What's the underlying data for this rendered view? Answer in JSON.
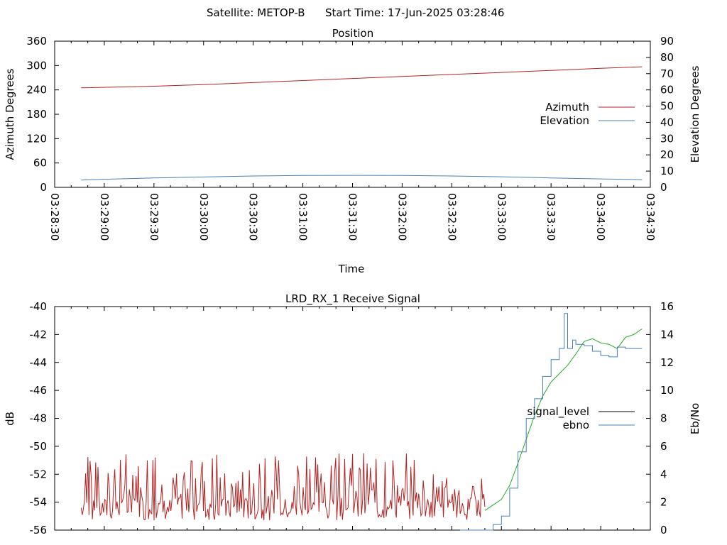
{
  "header": {
    "satellite_label": "Satellite: METOP-B",
    "start_time_label": "Start Time: 17-Jun-2025 03:28:46"
  },
  "chart_data": [
    {
      "type": "line",
      "title": "Position",
      "xlabel": "Time",
      "ylabel": "Azimuth Degrees",
      "y2label": "Elevation Degrees",
      "xlim": [
        "03:28:30",
        "03:34:30"
      ],
      "ylim": [
        0,
        360
      ],
      "y2lim": [
        0,
        90
      ],
      "x_ticks": [
        "03:28:30",
        "03:29:00",
        "03:29:30",
        "03:30:00",
        "03:30:30",
        "03:31:00",
        "03:31:30",
        "03:32:00",
        "03:32:30",
        "03:33:00",
        "03:33:30",
        "03:34:00",
        "03:34:30"
      ],
      "y_ticks": [
        "0",
        "60",
        "120",
        "180",
        "240",
        "300",
        "360"
      ],
      "y2_ticks": [
        "0",
        "10",
        "20",
        "30",
        "40",
        "50",
        "60",
        "70",
        "80",
        "90"
      ],
      "legend_position": "right",
      "series": [
        {
          "name": "Azimuth",
          "axis": "left",
          "color": "#b22222",
          "x": [
            "03:28:46",
            "03:29:30",
            "03:30:00",
            "03:30:30",
            "03:31:00",
            "03:31:30",
            "03:32:00",
            "03:32:30",
            "03:33:00",
            "03:33:30",
            "03:34:00",
            "03:34:25"
          ],
          "y": [
            245,
            249,
            253,
            258,
            263,
            268,
            273,
            278,
            283,
            288,
            293,
            297
          ]
        },
        {
          "name": "Elevation",
          "axis": "right",
          "color": "#4682b4",
          "x": [
            "03:28:46",
            "03:29:00",
            "03:29:30",
            "03:30:00",
            "03:30:30",
            "03:31:00",
            "03:31:30",
            "03:32:00",
            "03:32:30",
            "03:33:00",
            "03:33:30",
            "03:34:00",
            "03:34:25"
          ],
          "y": [
            4.5,
            5,
            5.8,
            6.4,
            7,
            7.3,
            7.4,
            7.3,
            7,
            6.5,
            5.8,
            5.2,
            4.7
          ]
        }
      ]
    },
    {
      "type": "line",
      "title": "LRD_RX_1 Receive Signal",
      "xlabel": "",
      "ylabel": "dB",
      "y2label": "Eb/No",
      "xlim": [
        "03:28:30",
        "03:34:30"
      ],
      "ylim": [
        -56,
        -40
      ],
      "y2lim": [
        0,
        16
      ],
      "y_ticks": [
        "-40",
        "-42",
        "-44",
        "-46",
        "-48",
        "-50",
        "-52",
        "-54",
        "-56"
      ],
      "y2_ticks": [
        "0",
        "2",
        "4",
        "6",
        "8",
        "10",
        "12",
        "14",
        "16"
      ],
      "legend_position": "right",
      "series": [
        {
          "name": "signal_level",
          "axis": "left",
          "color": "#000000",
          "segments": [
            {
              "color": "#b22222",
              "seed": 7,
              "x_range": [
                "03:28:46",
                "03:32:50"
              ],
              "noise_low": -55.3,
              "noise_high": -50.5
            },
            {
              "color": "#22aa22",
              "x": [
                "03:32:50",
                "03:33:00",
                "03:33:05",
                "03:33:10",
                "03:33:15",
                "03:33:20",
                "03:33:25",
                "03:33:30",
                "03:33:35",
                "03:33:40",
                "03:33:45",
                "03:33:50",
                "03:33:55",
                "03:34:00",
                "03:34:05",
                "03:34:10",
                "03:34:15",
                "03:34:20",
                "03:34:25"
              ],
              "y": [
                -54.6,
                -53.8,
                -52.8,
                -51.2,
                -49.5,
                -47.8,
                -46.4,
                -45.4,
                -44.8,
                -44.2,
                -43.4,
                -42.5,
                -42.3,
                -42.6,
                -42.7,
                -43.0,
                -42.2,
                -42.0,
                -41.6
              ]
            }
          ]
        },
        {
          "name": "ebno",
          "axis": "right",
          "color": "#4682b4",
          "x": [
            "03:32:35",
            "03:32:45",
            "03:32:55",
            "03:33:00",
            "03:33:05",
            "03:33:10",
            "03:33:15",
            "03:33:20",
            "03:33:25",
            "03:33:30",
            "03:33:35",
            "03:33:38",
            "03:33:40",
            "03:33:43",
            "03:33:45",
            "03:33:50",
            "03:33:55",
            "03:34:00",
            "03:34:05",
            "03:34:10",
            "03:34:15",
            "03:34:20",
            "03:34:25"
          ],
          "y": [
            0,
            0,
            0.4,
            1.0,
            3.0,
            5.6,
            8.0,
            9.4,
            11.0,
            12.2,
            13.0,
            15.5,
            13.0,
            13.6,
            13.3,
            13.2,
            12.8,
            12.5,
            12.4,
            13.1,
            13.0,
            13.0,
            13.0
          ]
        }
      ]
    }
  ]
}
